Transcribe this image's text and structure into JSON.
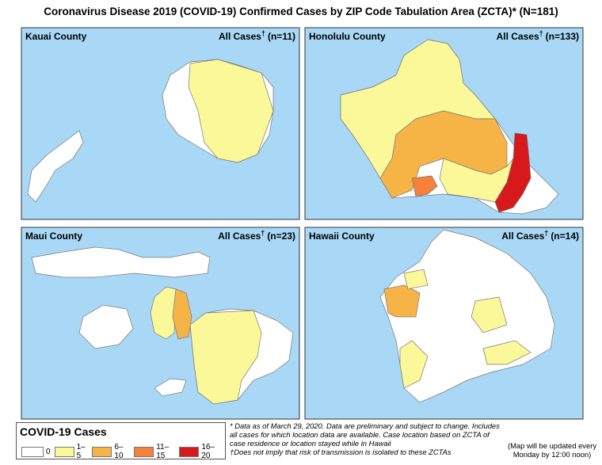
{
  "title": "Coronavirus Disease 2019 (COVID-19) Confirmed Cases by ZIP Code Tabulation Area (ZCTA)* (N=181)",
  "panels": [
    {
      "name": "Kauai County",
      "cases": {
        "label": "All Cases",
        "mark": "†",
        "count": "(n=11)"
      }
    },
    {
      "name": "Honolulu County",
      "cases": {
        "label": "All Cases",
        "mark": "†",
        "count": "(n=133)"
      }
    },
    {
      "name": "Maui County",
      "cases": {
        "label": "All Cases",
        "mark": "†",
        "count": "(n=23)"
      }
    },
    {
      "name": "Hawaii County",
      "cases": {
        "label": "All Cases",
        "mark": "†",
        "count": "(n=14)"
      }
    }
  ],
  "legend": {
    "title": "COVID-19 Cases",
    "items": [
      {
        "label": "0",
        "color": "#ffffff"
      },
      {
        "label": "1–5",
        "color": "#fbf89a"
      },
      {
        "label": "6–10",
        "color": "#f7b446"
      },
      {
        "label": "11–15",
        "color": "#f5813c"
      },
      {
        "label": "16–20",
        "color": "#d7191c"
      }
    ]
  },
  "notes": [
    "* Data as of March 29, 2020. Data are preliminary and subject to change. Includes all cases for which location data are available. Case location based on ZCTA of case residence or location stayed while in Hawaii",
    "†Does not imply that risk of transmission is isolated to these ZCTAs"
  ],
  "update_note": "(Map will be updated every Monday by 12:00 noon)"
}
